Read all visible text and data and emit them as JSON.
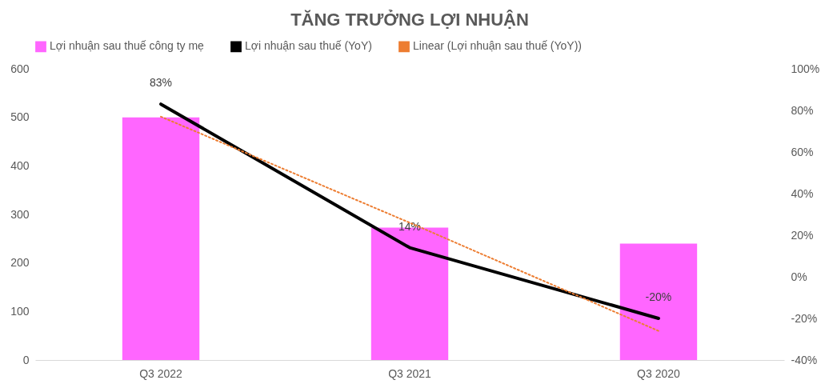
{
  "chart_data": {
    "type": "bar",
    "title": "TĂNG TRƯỞNG LỢI NHUẬN",
    "categories": [
      "Q3 2022",
      "Q3 2021",
      "Q3 2020"
    ],
    "series": [
      {
        "name": "Lợi nhuận sau thuế công ty mẹ",
        "color": "#ff66ff",
        "values": [
          500,
          273,
          240
        ]
      },
      {
        "name": "Lợi nhuận sau thuế (YoY)",
        "type": "line",
        "axis": "y2",
        "color": "#000000",
        "line_style": "solid",
        "values": [
          83,
          14,
          -20
        ],
        "value_labels": [
          "83%",
          "14%",
          "-20%"
        ]
      },
      {
        "name": "Linear (Lợi nhuận sau thuế (YoY))",
        "type": "line",
        "axis": "y2",
        "color": "#ed7d31",
        "line_style": "dotted",
        "values": [
          77,
          26,
          -26
        ]
      }
    ],
    "ylim": [
      0,
      600
    ],
    "yticks": [
      0,
      100,
      200,
      300,
      400,
      500,
      600
    ],
    "y2lim": [
      -40,
      100
    ],
    "y2ticks": [
      {
        "value": -40,
        "label": "-40%"
      },
      {
        "value": -20,
        "label": "-20%"
      },
      {
        "value": 0,
        "label": "0%"
      },
      {
        "value": 20,
        "label": "20%"
      },
      {
        "value": 40,
        "label": "40%"
      },
      {
        "value": 60,
        "label": "60%"
      },
      {
        "value": 80,
        "label": "80%"
      },
      {
        "value": 100,
        "label": "100%"
      }
    ],
    "legend": "top"
  }
}
